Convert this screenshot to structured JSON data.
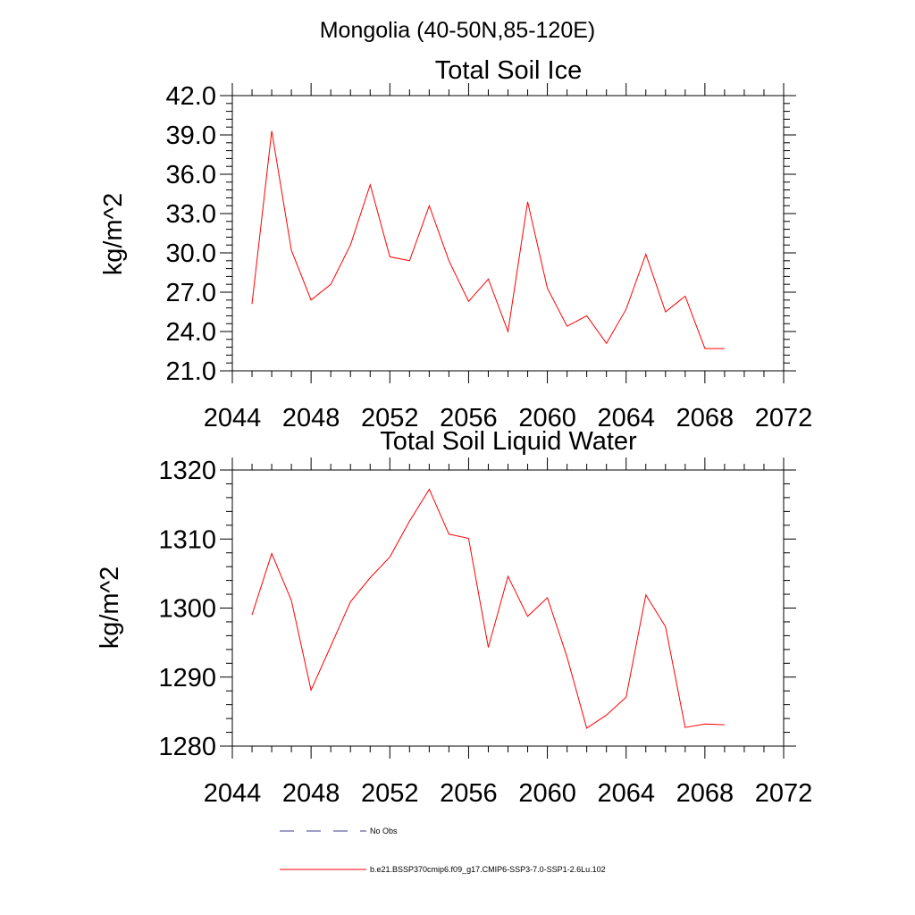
{
  "figure": {
    "suptitle": "Mongolia (40-50N,85-120E)"
  },
  "chart_data": [
    {
      "type": "line",
      "title": "Total Soil Ice",
      "ylabel": "kg/m^2",
      "xlabel": "",
      "xlim": [
        2044,
        2072
      ],
      "ylim": [
        21,
        42
      ],
      "xticks": [
        2044,
        2048,
        2052,
        2056,
        2060,
        2064,
        2068,
        2072
      ],
      "xtick_labels": [
        "2044",
        "2048",
        "2052",
        "2056",
        "2060",
        "2064",
        "2068",
        "2072"
      ],
      "yticks": [
        21,
        24,
        27,
        30,
        33,
        36,
        39,
        42
      ],
      "ytick_labels": [
        "21.0",
        "24.0",
        "27.0",
        "30.0",
        "33.0",
        "36.0",
        "39.0",
        "42.0"
      ],
      "x": [
        2045,
        2046,
        2047,
        2048,
        2049,
        2050,
        2051,
        2052,
        2053,
        2054,
        2055,
        2056,
        2057,
        2058,
        2059,
        2060,
        2061,
        2062,
        2063,
        2064,
        2065,
        2066,
        2067,
        2068,
        2069
      ],
      "series": [
        {
          "color": "#ff0000",
          "values": [
            26.1,
            39.3,
            30.2,
            26.4,
            27.6,
            30.6,
            35.2,
            29.7,
            29.4,
            33.6,
            29.4,
            26.3,
            28.0,
            24.0,
            33.9,
            27.3,
            24.4,
            25.2,
            23.1,
            25.7,
            29.9,
            25.5,
            26.7,
            22.7,
            22.7
          ]
        }
      ]
    },
    {
      "type": "line",
      "title": "Total Soil Liquid Water",
      "ylabel": "kg/m^2",
      "xlabel": "",
      "xlim": [
        2044,
        2072
      ],
      "ylim": [
        1280,
        1320
      ],
      "xticks": [
        2044,
        2048,
        2052,
        2056,
        2060,
        2064,
        2068,
        2072
      ],
      "xtick_labels": [
        "2044",
        "2048",
        "2052",
        "2056",
        "2060",
        "2064",
        "2068",
        "2072"
      ],
      "yticks": [
        1280,
        1290,
        1300,
        1310,
        1320
      ],
      "ytick_labels": [
        "1280",
        "1290",
        "1300",
        "1310",
        "1320"
      ],
      "x": [
        2045,
        2046,
        2047,
        2048,
        2049,
        2050,
        2051,
        2052,
        2053,
        2054,
        2055,
        2056,
        2057,
        2058,
        2059,
        2060,
        2061,
        2062,
        2063,
        2064,
        2065,
        2066,
        2067,
        2068,
        2069
      ],
      "series": [
        {
          "color": "#ff0000",
          "values": [
            1299.0,
            1307.9,
            1301.1,
            1288.1,
            1294.5,
            1300.9,
            1304.4,
            1307.4,
            1312.6,
            1317.2,
            1310.7,
            1310.1,
            1294.3,
            1304.6,
            1298.8,
            1301.5,
            1292.9,
            1282.6,
            1284.5,
            1287.1,
            1301.9,
            1297.3,
            1282.7,
            1283.2,
            1283.1
          ]
        }
      ]
    }
  ],
  "legend": {
    "placement": "bottom",
    "items": [
      {
        "label": "No Obs",
        "color": "#3b3b8f",
        "style": "dashed"
      },
      {
        "label": "b.e21.BSSP370cmip6.f09_g17.CMIP6-SSP3-7.0-SSP1-2.6Lu.102",
        "color": "#ff0000",
        "style": "solid"
      }
    ]
  }
}
